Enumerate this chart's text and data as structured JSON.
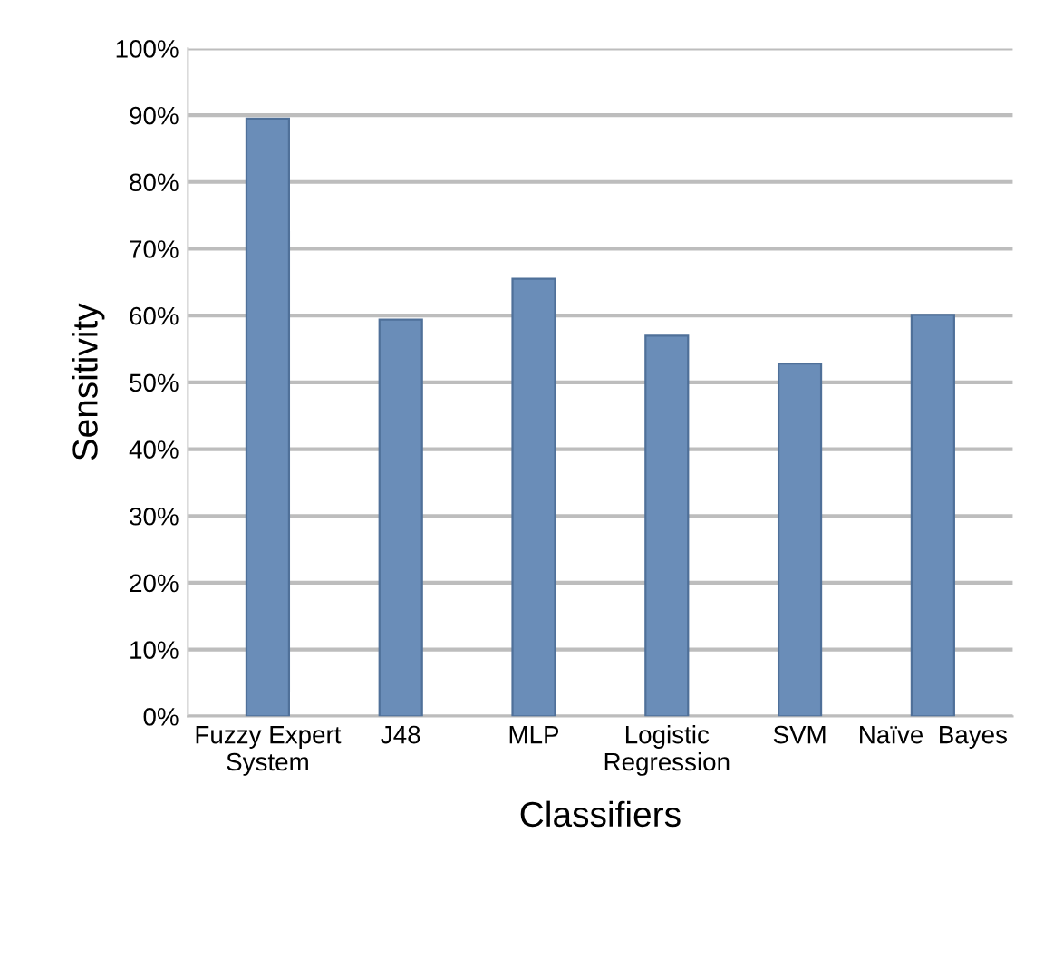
{
  "chart_data": {
    "type": "bar",
    "xlabel": "Classifiers",
    "ylabel": "Sensitivity",
    "categories": [
      "Fuzzy Expert\nSystem",
      "J48",
      "MLP",
      "Logistic\nRegression",
      "SVM",
      "Naïve  Bayes"
    ],
    "values": [
      89.5,
      59.4,
      65.5,
      57.0,
      52.8,
      60.1
    ],
    "color": "#6a8db8",
    "ylim": [
      0,
      100
    ],
    "yticks": [
      {
        "value": 0,
        "label": "0%"
      },
      {
        "value": 10,
        "label": "10%"
      },
      {
        "value": 20,
        "label": "20%"
      },
      {
        "value": 30,
        "label": "30%"
      },
      {
        "value": 40,
        "label": "40%"
      },
      {
        "value": 50,
        "label": "50%"
      },
      {
        "value": 60,
        "label": "60%"
      },
      {
        "value": 70,
        "label": "70%"
      },
      {
        "value": 80,
        "label": "80%"
      },
      {
        "value": 90,
        "label": "90%"
      },
      {
        "value": 100,
        "label": "100%"
      }
    ],
    "grid": "y"
  }
}
